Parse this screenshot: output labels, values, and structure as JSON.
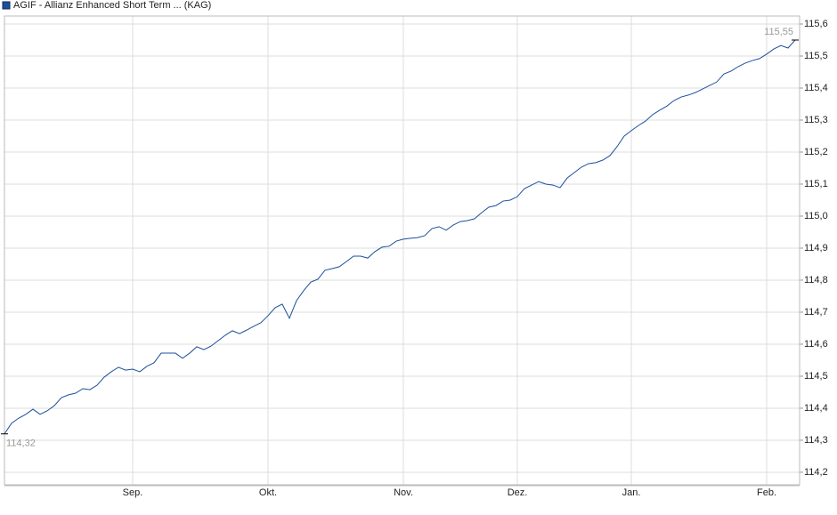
{
  "chart_data": {
    "type": "line",
    "categories": [
      null,
      null,
      null,
      null,
      null,
      null,
      null,
      null,
      null,
      null,
      null,
      null,
      null,
      null,
      null,
      null,
      null,
      null,
      "Sep.",
      null,
      null,
      null,
      null,
      null,
      null,
      null,
      null,
      null,
      null,
      null,
      null,
      null,
      null,
      null,
      null,
      null,
      null,
      "Okt.",
      null,
      null,
      null,
      null,
      null,
      null,
      null,
      null,
      null,
      null,
      null,
      null,
      null,
      null,
      null,
      null,
      null,
      null,
      "Nov.",
      null,
      null,
      null,
      null,
      null,
      null,
      null,
      null,
      null,
      null,
      null,
      null,
      null,
      null,
      null,
      "Dez.",
      null,
      null,
      null,
      null,
      null,
      null,
      null,
      null,
      null,
      null,
      null,
      null,
      null,
      null,
      null,
      "Jan.",
      null,
      null,
      null,
      null,
      null,
      null,
      null,
      null,
      null,
      null,
      null,
      null,
      null,
      null,
      null,
      null,
      null,
      null,
      "Feb.",
      null,
      null,
      null,
      null
    ],
    "series": [
      {
        "name": "AGIF - Allianz Enhanced Short Term ... (KAG)",
        "color": "#1c4f9c",
        "values": [
          114.32,
          114.353,
          114.369,
          114.381,
          114.397,
          114.381,
          114.392,
          114.408,
          114.433,
          114.442,
          114.447,
          114.461,
          114.458,
          114.472,
          114.497,
          114.514,
          114.528,
          114.519,
          114.522,
          114.514,
          114.531,
          114.542,
          114.572,
          114.572,
          114.572,
          114.556,
          114.572,
          114.592,
          114.583,
          114.594,
          114.611,
          114.628,
          114.642,
          114.633,
          114.644,
          114.656,
          114.667,
          114.689,
          114.714,
          114.725,
          114.681,
          114.736,
          114.767,
          114.794,
          114.803,
          114.831,
          114.836,
          114.842,
          114.858,
          114.875,
          114.875,
          114.869,
          114.889,
          114.903,
          114.906,
          114.922,
          114.928,
          114.931,
          114.933,
          114.939,
          114.961,
          114.967,
          114.956,
          114.972,
          114.983,
          114.986,
          114.992,
          115.011,
          115.028,
          115.033,
          115.047,
          115.05,
          115.061,
          115.086,
          115.097,
          115.108,
          115.1,
          115.097,
          115.089,
          115.119,
          115.136,
          115.153,
          115.164,
          115.167,
          115.175,
          115.189,
          115.217,
          115.25,
          115.267,
          115.283,
          115.297,
          115.317,
          115.331,
          115.344,
          115.361,
          115.372,
          115.378,
          115.386,
          115.397,
          115.408,
          115.419,
          115.444,
          115.453,
          115.467,
          115.478,
          115.486,
          115.492,
          115.506,
          115.522,
          115.533,
          115.525,
          115.55
        ],
        "value_labels": [
          "114,32",
          null,
          null,
          null,
          null,
          null,
          null,
          null,
          null,
          null,
          null,
          null,
          null,
          null,
          null,
          null,
          null,
          null,
          null,
          null,
          null,
          null,
          null,
          null,
          null,
          null,
          null,
          null,
          null,
          null,
          null,
          null,
          null,
          null,
          null,
          null,
          null,
          null,
          null,
          null,
          null,
          null,
          null,
          null,
          null,
          null,
          null,
          null,
          null,
          null,
          null,
          null,
          null,
          null,
          null,
          null,
          null,
          null,
          null,
          null,
          null,
          null,
          null,
          null,
          null,
          null,
          null,
          null,
          null,
          null,
          null,
          null,
          null,
          null,
          null,
          null,
          null,
          null,
          null,
          null,
          null,
          null,
          null,
          null,
          null,
          null,
          null,
          null,
          null,
          null,
          null,
          null,
          null,
          null,
          null,
          null,
          null,
          null,
          null,
          null,
          null,
          null,
          null,
          null,
          null,
          null,
          null,
          null,
          null,
          null,
          null,
          "115,55"
        ]
      }
    ],
    "ylim": [
      114.161,
      115.625
    ],
    "yticks": [
      {
        "value": 114.2,
        "label": "114,2"
      },
      {
        "value": 114.3,
        "label": "114,3"
      },
      {
        "value": 114.4,
        "label": "114,4"
      },
      {
        "value": 114.5,
        "label": "114,5"
      },
      {
        "value": 114.6,
        "label": "114,6"
      },
      {
        "value": 114.7,
        "label": "114,7"
      },
      {
        "value": 114.8,
        "label": "114,8"
      },
      {
        "value": 114.9,
        "label": "114,9"
      },
      {
        "value": 115.0,
        "label": "115,0"
      },
      {
        "value": 115.1,
        "label": "115,1"
      },
      {
        "value": 115.2,
        "label": "115,2"
      },
      {
        "value": 115.3,
        "label": "115,3"
      },
      {
        "value": 115.4,
        "label": "115,4"
      },
      {
        "value": 115.5,
        "label": "115,5"
      },
      {
        "value": 115.6,
        "label": "115,6"
      }
    ],
    "grid": true,
    "legend": "top-left"
  }
}
